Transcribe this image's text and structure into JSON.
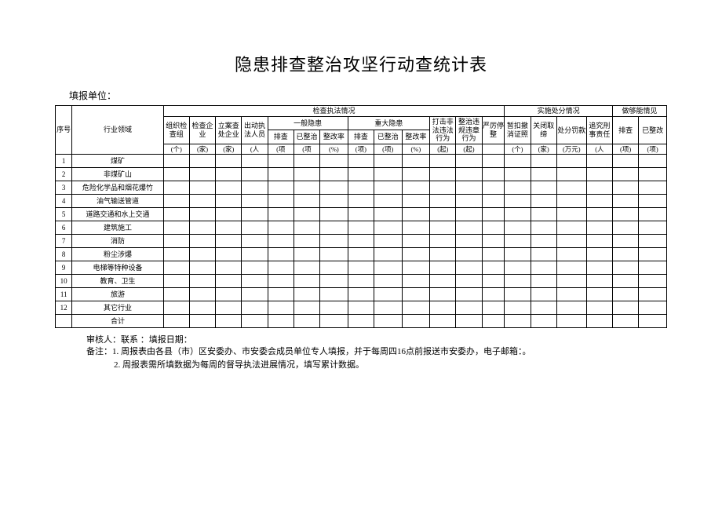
{
  "title": "隐患排查整治攻坚行动查统计表",
  "reporter_label": "填报单位：",
  "header": {
    "seq": "序号",
    "domain": "行业领域",
    "group1": "检查执法情况",
    "group2": "实施处分情况",
    "group3": "做够能情见",
    "org_check": "组织检 查组",
    "check_ent": "检查企业",
    "case_ent": "立案查处企业",
    "dispatch": "出动执法人员",
    "general_hidden": "一般隐患",
    "major_hidden": "重大隐患",
    "illegal": "打击非法违法行为",
    "violation": "整治违规违章行为",
    "stop": "严厉停整",
    "revoke": "暂扣撤消证照",
    "close": "关闭取缔",
    "penalty": "处分罚款",
    "criminal": "追究刑事责任",
    "check": "排查",
    "rectified": "已整治",
    "rect_rate": "整改率",
    "rectified2": "已整改"
  },
  "units": {
    "ge": "(个)",
    "jia": "(家)",
    "ren": "(人",
    "xiang": "(项",
    "xiang_p": "(项)",
    "pct": "(%)",
    "qi": "(起)",
    "wan": "(万元)"
  },
  "rows": [
    {
      "n": "1",
      "label": "煤矿"
    },
    {
      "n": "2",
      "label": "非煤矿山"
    },
    {
      "n": "3",
      "label": "危险化学品和烟花爆竹"
    },
    {
      "n": "4",
      "label": "油气输送管道"
    },
    {
      "n": "5",
      "label": "道路交通和水上交通"
    },
    {
      "n": "6",
      "label": "建筑施工"
    },
    {
      "n": "7",
      "label": "消防"
    },
    {
      "n": "8",
      "label": "粉尘涉爆"
    },
    {
      "n": "9",
      "label": "电梯等特种设备"
    },
    {
      "n": "10",
      "label": "教育、卫生"
    },
    {
      "n": "11",
      "label": "旅游"
    },
    {
      "n": "12",
      "label": "其它行业"
    },
    {
      "n": "",
      "label": "合计"
    }
  ],
  "footer": "审核人：联系 ：填报日期：",
  "note_prefix": "备注：",
  "note1": "1. 周报表由各县（市）区安委办、市安委会成员单位专人填报，并于每周四16点前报送市安委办，电子邮箱：。",
  "note2": "2. 周报表需所填数据为每周的督导执法进展情况，填写累计数据。",
  "style": {
    "border_color": "#000000",
    "bg": "#ffffff",
    "title_fontsize": 22,
    "body_fontsize": 10,
    "cell_fontsize": 9,
    "font_family": "SimSun"
  }
}
